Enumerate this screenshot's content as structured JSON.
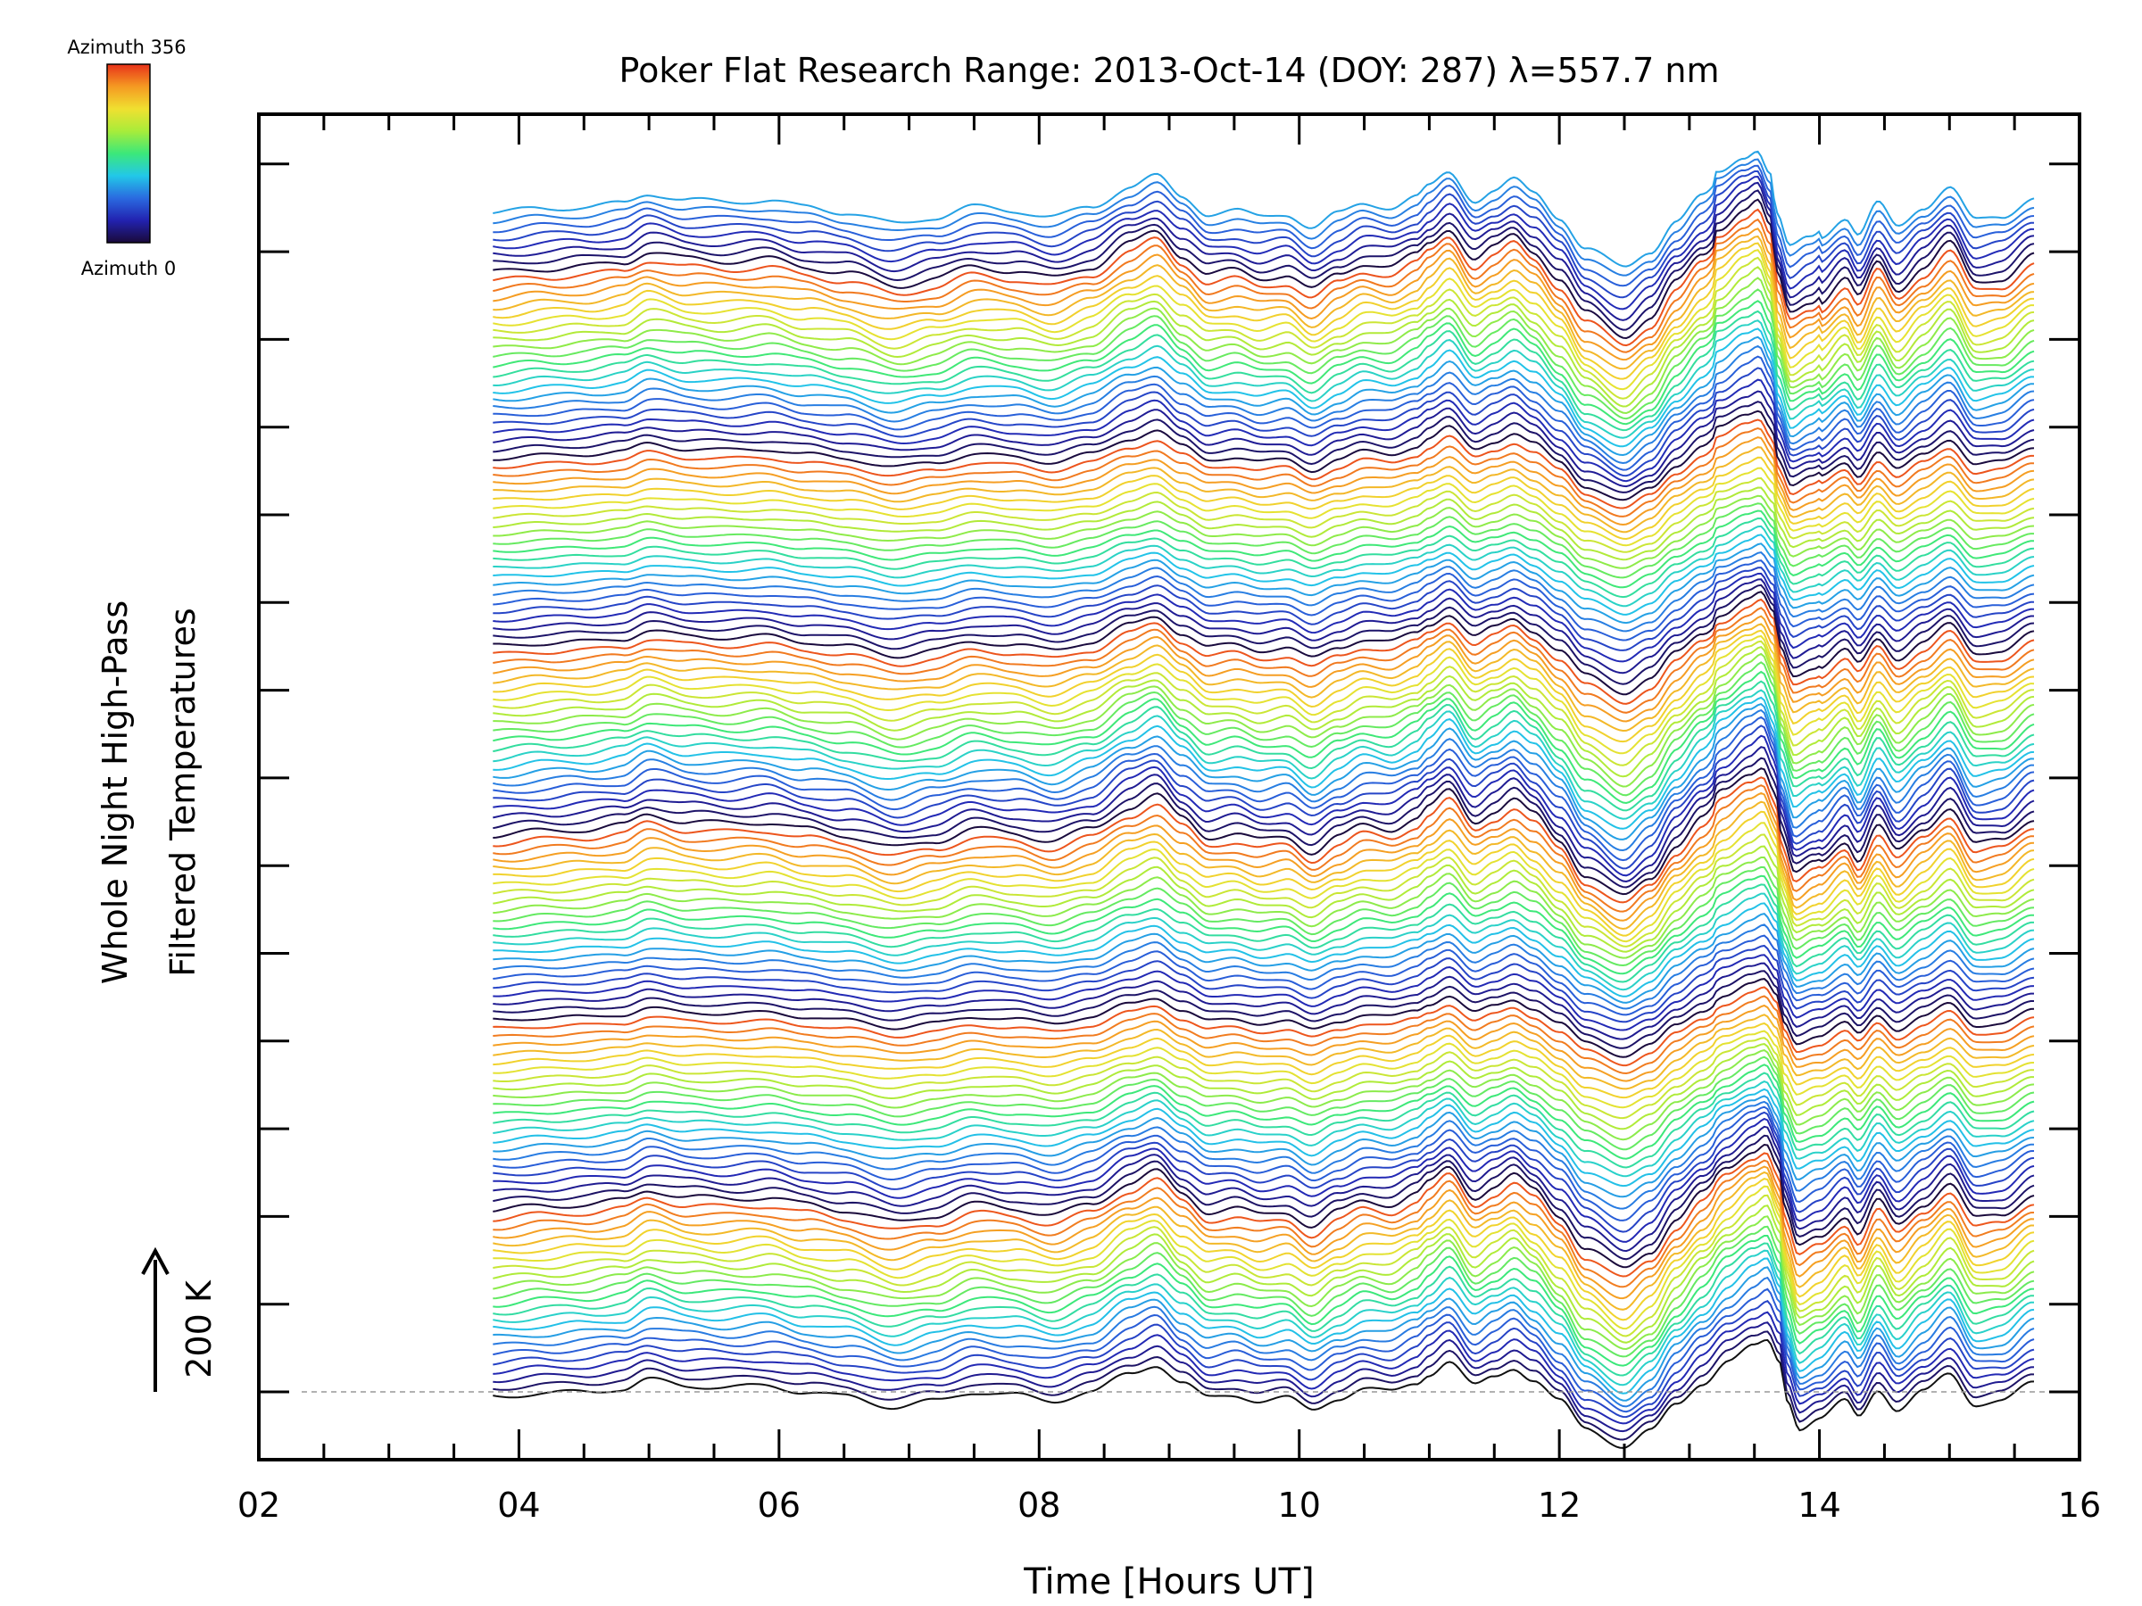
{
  "chart_data": {
    "type": "line",
    "title": "Poker Flat Research Range: 2013-Oct-14 (DOY: 287) λ=557.7 nm",
    "xlabel": "Time [Hours UT]",
    "ylabel_line1": "Whole Night High-Pass",
    "ylabel_line2": "Filtered Temperatures",
    "xlim": [
      2,
      16
    ],
    "x_ticks": [
      "02",
      "04",
      "06",
      "08",
      "10",
      "12",
      "14",
      "16"
    ],
    "x_tick_values": [
      2,
      4,
      6,
      8,
      10,
      12,
      14,
      16
    ],
    "scale_label": "200 K",
    "colorbar": {
      "top_label": "Azimuth 356",
      "bottom_label": "Azimuth 0",
      "range": [
        0,
        356
      ],
      "colors": [
        "#1a0a3a",
        "#2222b0",
        "#2a6ae0",
        "#22c8e8",
        "#3ce87a",
        "#a8ec3a",
        "#f0e030",
        "#f59a22",
        "#e8321a"
      ]
    },
    "series_count": 140,
    "time_range": [
      3.8,
      15.65
    ],
    "profile": {
      "x": [
        3.8,
        4.2,
        4.5,
        4.8,
        5.0,
        5.3,
        5.6,
        5.9,
        6.2,
        6.5,
        6.9,
        7.2,
        7.5,
        7.8,
        8.1,
        8.4,
        8.7,
        8.9,
        9.1,
        9.3,
        9.5,
        9.7,
        9.9,
        10.1,
        10.3,
        10.5,
        10.7,
        10.9,
        11.0,
        11.15,
        11.35,
        11.5,
        11.65,
        11.8,
        12.0,
        12.2,
        12.5,
        12.7,
        12.9,
        13.1,
        13.3,
        13.5,
        13.6,
        13.7,
        13.75,
        13.85,
        14.0,
        14.2,
        14.3,
        14.45,
        14.6,
        14.8,
        15.0,
        15.2,
        15.4,
        15.65
      ],
      "y": [
        -0.15,
        -0.05,
        0.0,
        0.1,
        0.4,
        0.2,
        0.15,
        0.2,
        0.0,
        -0.15,
        -0.5,
        -0.3,
        0.0,
        -0.1,
        -0.3,
        0.0,
        0.6,
        0.9,
        0.3,
        -0.2,
        -0.1,
        -0.3,
        -0.2,
        -0.6,
        -0.2,
        0.1,
        0.0,
        0.3,
        0.6,
        1.0,
        0.2,
        0.5,
        0.8,
        0.4,
        -0.3,
        -1.2,
        -1.8,
        -1.3,
        -0.4,
        0.3,
        1.0,
        1.5,
        1.7,
        1.0,
        -0.2,
        -1.2,
        -0.9,
        -0.3,
        -0.8,
        0.1,
        -0.6,
        0.0,
        0.6,
        -0.4,
        -0.3,
        0.3
      ]
    }
  }
}
